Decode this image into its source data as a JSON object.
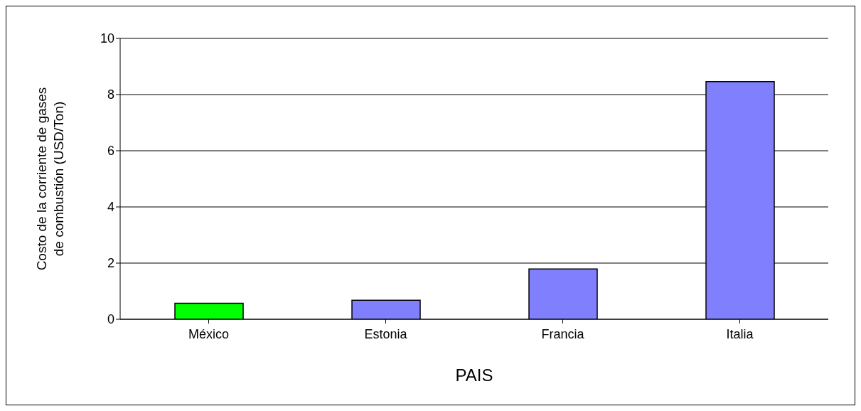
{
  "chart_data": {
    "type": "bar",
    "xlabel": "PAIS",
    "ylabel": "Costo de la corriente de gases de combustión (USD/Ton)",
    "categories": [
      "México",
      "Estonia",
      "Francia",
      "Italia"
    ],
    "values": [
      0.57,
      0.68,
      1.79,
      8.46
    ],
    "colors": [
      "#00ff00",
      "#8080ff",
      "#8080ff",
      "#8080ff"
    ],
    "ylim": [
      0,
      10
    ],
    "yticks": [
      0,
      2,
      4,
      6,
      8,
      10
    ],
    "grid": "y"
  }
}
